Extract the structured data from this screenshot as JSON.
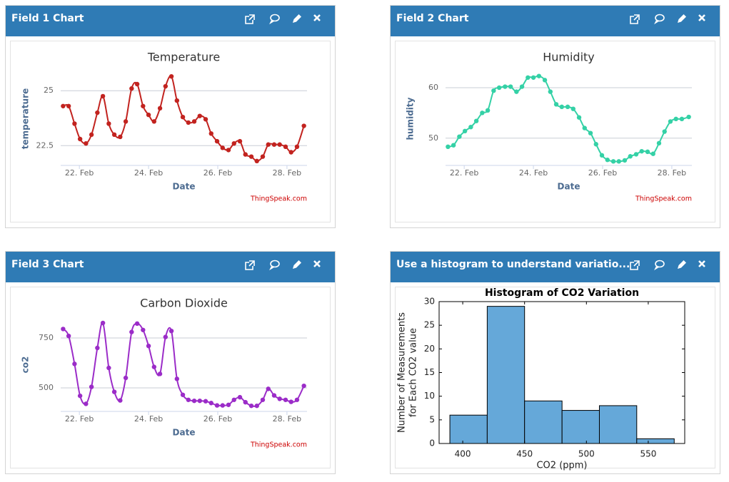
{
  "panels": [
    {
      "title": "Field 1 Chart"
    },
    {
      "title": "Field 2 Chart"
    },
    {
      "title": "Field 3 Chart"
    },
    {
      "title": "Use a histogram to understand variatio..."
    }
  ],
  "chart_data": [
    {
      "type": "line",
      "title": "Temperature",
      "ylabel": "temperature",
      "xlabel": "Date",
      "credit": "ThingSpeak.com",
      "color": "#c2231f",
      "x": [
        21.53,
        21.69,
        21.86,
        22.02,
        22.19,
        22.35,
        22.52,
        22.68,
        22.85,
        23.01,
        23.18,
        23.34,
        23.51,
        23.67,
        23.84,
        24.0,
        24.16,
        24.33,
        24.49,
        24.66,
        24.82,
        24.99,
        25.15,
        25.32,
        25.48,
        25.65,
        25.81,
        25.98,
        26.14,
        26.31,
        26.47,
        26.64,
        26.8,
        26.97,
        27.13,
        27.3,
        27.46,
        27.63,
        27.79,
        27.96,
        28.12,
        28.29,
        28.49
      ],
      "values": [
        24.3,
        24.3,
        23.5,
        22.8,
        22.6,
        23.0,
        24.0,
        24.75,
        23.5,
        23.0,
        22.9,
        23.6,
        25.1,
        25.3,
        24.3,
        23.9,
        23.6,
        24.2,
        25.2,
        25.65,
        24.55,
        23.8,
        23.55,
        23.6,
        23.85,
        23.7,
        23.05,
        22.7,
        22.4,
        22.3,
        22.6,
        22.7,
        22.1,
        22.0,
        21.8,
        22.0,
        22.55,
        22.55,
        22.55,
        22.45,
        22.2,
        22.45,
        23.4
      ],
      "xlim": [
        21.46,
        28.58
      ],
      "xticks": [
        {
          "value": 22,
          "label": "22. Feb"
        },
        {
          "value": 24,
          "label": "24. Feb"
        },
        {
          "value": 26,
          "label": "26. Feb"
        },
        {
          "value": 28,
          "label": "28. Feb"
        }
      ],
      "ylim": [
        21.6,
        25.85
      ],
      "yticks": [
        22.5,
        25
      ],
      "grid": true
    },
    {
      "type": "line",
      "title": "Humidity",
      "ylabel": "humidity",
      "xlabel": "Date",
      "credit": "ThingSpeak.com",
      "color": "#34d1a6",
      "x": [
        21.53,
        21.69,
        21.86,
        22.02,
        22.19,
        22.35,
        22.52,
        22.68,
        22.85,
        23.01,
        23.18,
        23.34,
        23.51,
        23.67,
        23.84,
        24.0,
        24.16,
        24.33,
        24.49,
        24.66,
        24.82,
        24.99,
        25.15,
        25.32,
        25.48,
        25.65,
        25.81,
        25.98,
        26.14,
        26.31,
        26.47,
        26.64,
        26.8,
        26.97,
        27.13,
        27.3,
        27.46,
        27.63,
        27.79,
        27.96,
        28.12,
        28.29,
        28.49
      ],
      "values": [
        48.3,
        48.6,
        50.3,
        51.4,
        52.2,
        53.4,
        55,
        55.5,
        59.4,
        60,
        60.2,
        60.2,
        59.2,
        60.2,
        62,
        62,
        62.3,
        61.5,
        59.2,
        56.7,
        56.2,
        56.2,
        55.8,
        54.1,
        52,
        51,
        48.8,
        46.6,
        45.7,
        45.4,
        45.4,
        45.6,
        46.4,
        46.8,
        47.4,
        47.3,
        46.9,
        49,
        51.3,
        53.3,
        53.8,
        53.8,
        54.2
      ],
      "xlim": [
        21.46,
        28.58
      ],
      "xticks": [
        {
          "value": 22,
          "label": "22. Feb"
        },
        {
          "value": 24,
          "label": "24. Feb"
        },
        {
          "value": 26,
          "label": "26. Feb"
        },
        {
          "value": 28,
          "label": "28. Feb"
        }
      ],
      "ylim": [
        44.6,
        63.1
      ],
      "yticks": [
        50,
        60
      ],
      "grid": true
    },
    {
      "type": "line",
      "title": "Carbon Dioxide",
      "ylabel": "co2",
      "xlabel": "Date",
      "credit": "ThingSpeak.com",
      "color": "#9b2cc8",
      "x": [
        21.53,
        21.69,
        21.86,
        22.02,
        22.19,
        22.35,
        22.52,
        22.68,
        22.85,
        23.01,
        23.18,
        23.34,
        23.51,
        23.67,
        23.84,
        24.0,
        24.16,
        24.33,
        24.49,
        24.66,
        24.82,
        24.99,
        25.15,
        25.32,
        25.48,
        25.65,
        25.81,
        25.98,
        26.14,
        26.31,
        26.47,
        26.64,
        26.8,
        26.97,
        27.13,
        27.3,
        27.46,
        27.63,
        27.79,
        27.96,
        28.12,
        28.29,
        28.49
      ],
      "values": [
        795,
        760,
        620,
        460,
        420,
        505,
        700,
        825,
        600,
        480,
        437,
        550,
        780,
        822,
        790,
        710,
        605,
        570,
        755,
        785,
        545,
        465,
        440,
        435,
        435,
        433,
        424,
        412,
        412,
        415,
        440,
        453,
        428,
        410,
        410,
        440,
        495,
        462,
        445,
        440,
        430,
        440,
        510
      ],
      "xlim": [
        21.46,
        28.58
      ],
      "xticks": [
        {
          "value": 22,
          "label": "22. Feb"
        },
        {
          "value": 24,
          "label": "24. Feb"
        },
        {
          "value": 26,
          "label": "26. Feb"
        },
        {
          "value": 28,
          "label": "28. Feb"
        }
      ],
      "ylim": [
        382,
        850
      ],
      "yticks": [
        500,
        750
      ],
      "grid": true
    },
    {
      "type": "histogram",
      "title": "Histogram of CO2 Variation",
      "xlabel": "CO2 (ppm)",
      "ylabel": [
        "Number of Measurements",
        "for Each CO2 value"
      ],
      "color": "#65a8d9",
      "bins": [
        389.6,
        419.8,
        450,
        480.3,
        510.5,
        540.7,
        571
      ],
      "values": [
        6,
        29,
        9,
        7,
        8,
        1
      ],
      "xlim": [
        380.9,
        579.5
      ],
      "xticks": [
        400,
        450,
        500,
        550
      ],
      "ylim": [
        0,
        30
      ],
      "yticks": [
        0,
        5,
        10,
        15,
        20,
        25,
        30
      ]
    }
  ]
}
